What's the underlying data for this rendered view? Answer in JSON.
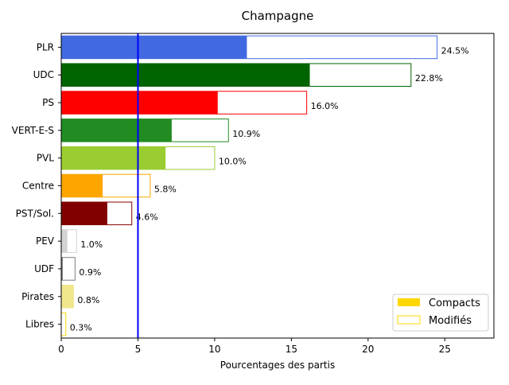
{
  "chart_data": {
    "type": "bar",
    "orientation": "horizontal",
    "title": "Champagne",
    "xlabel": "Pourcentages des partis",
    "ylabel": "",
    "xlim": [
      0,
      28.2
    ],
    "xticks": [
      "0",
      "5",
      "10",
      "15",
      "20",
      "25"
    ],
    "threshold": 5,
    "threshold_color": "#0000ff",
    "categories": [
      "PLR",
      "UDC",
      "PS",
      "VERT-E-S",
      "PVL",
      "Centre",
      "PST/Sol.",
      "PEV",
      "UDF",
      "Pirates",
      "Libres"
    ],
    "colors": [
      "#4169e1",
      "#006400",
      "#ff0000",
      "#228b22",
      "#9acd32",
      "#ffa500",
      "#800000",
      "#d3d3d3",
      "#808080",
      "#f0e68c",
      "#ffd700"
    ],
    "series": [
      {
        "name": "Compacts",
        "values": [
          12.1,
          16.2,
          10.2,
          7.2,
          6.8,
          2.7,
          3.0,
          0.4,
          0.1,
          0.8,
          0.0
        ]
      },
      {
        "name": "Modifiés",
        "values": [
          24.5,
          22.8,
          16.0,
          10.9,
          10.0,
          5.8,
          4.6,
          1.0,
          0.9,
          0.8,
          0.3
        ]
      }
    ],
    "labels": [
      "24.5%",
      "22.8%",
      "16.0%",
      "10.9%",
      "10.0%",
      "5.8%",
      "4.6%",
      "1.0%",
      "0.9%",
      "0.8%",
      "0.3%"
    ],
    "legend": {
      "position": "bottom-right",
      "fill_color": "#ffd700",
      "outline_color": "#ffd700"
    },
    "grid": false
  }
}
